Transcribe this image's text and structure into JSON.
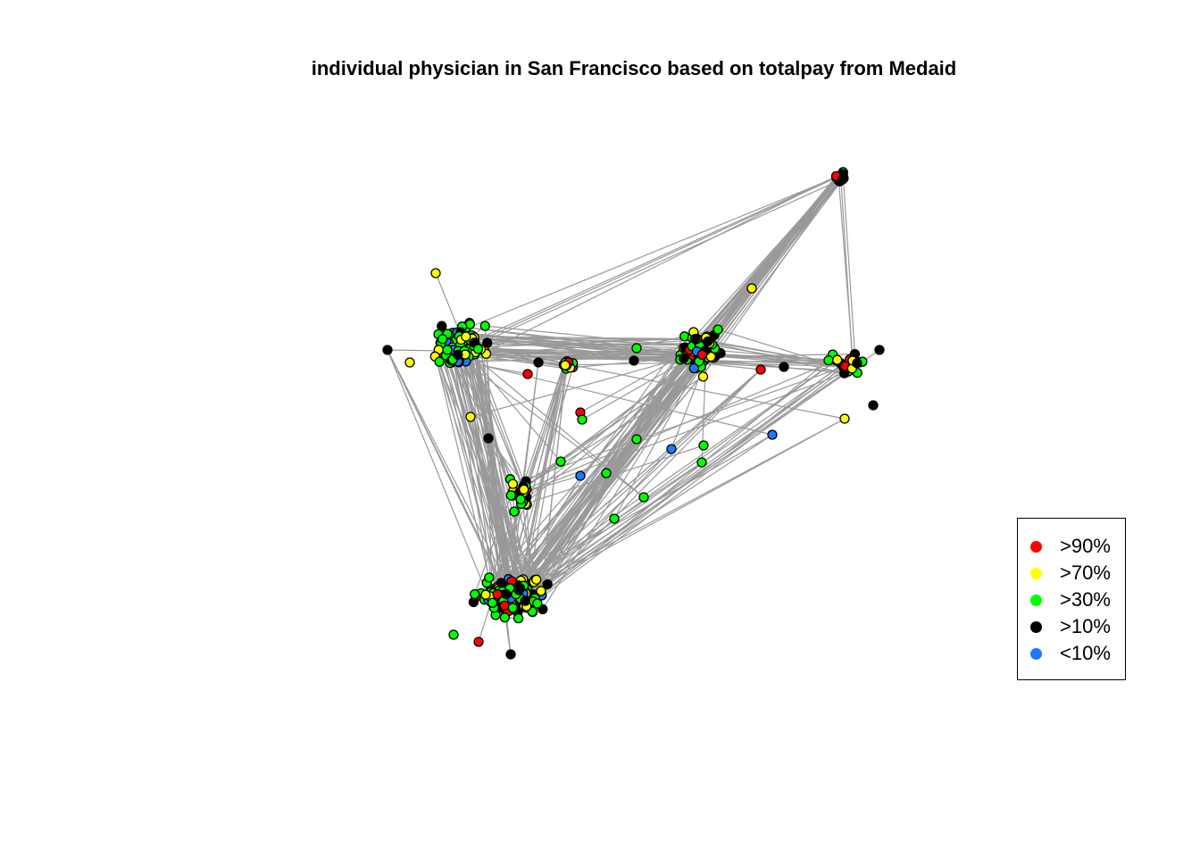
{
  "title": "individual physician in San Francisco based on totalpay from Medaid",
  "legend": {
    "items": [
      {
        "label": ">90%",
        "color": "#ff0000"
      },
      {
        "label": ">70%",
        "color": "#ffff00"
      },
      {
        "label": ">30%",
        "color": "#00ff00"
      },
      {
        "label": ">10%",
        "color": "#000000"
      },
      {
        "label": "<10%",
        "color": "#1e78ff"
      }
    ]
  },
  "edge_color": "#999999"
}
